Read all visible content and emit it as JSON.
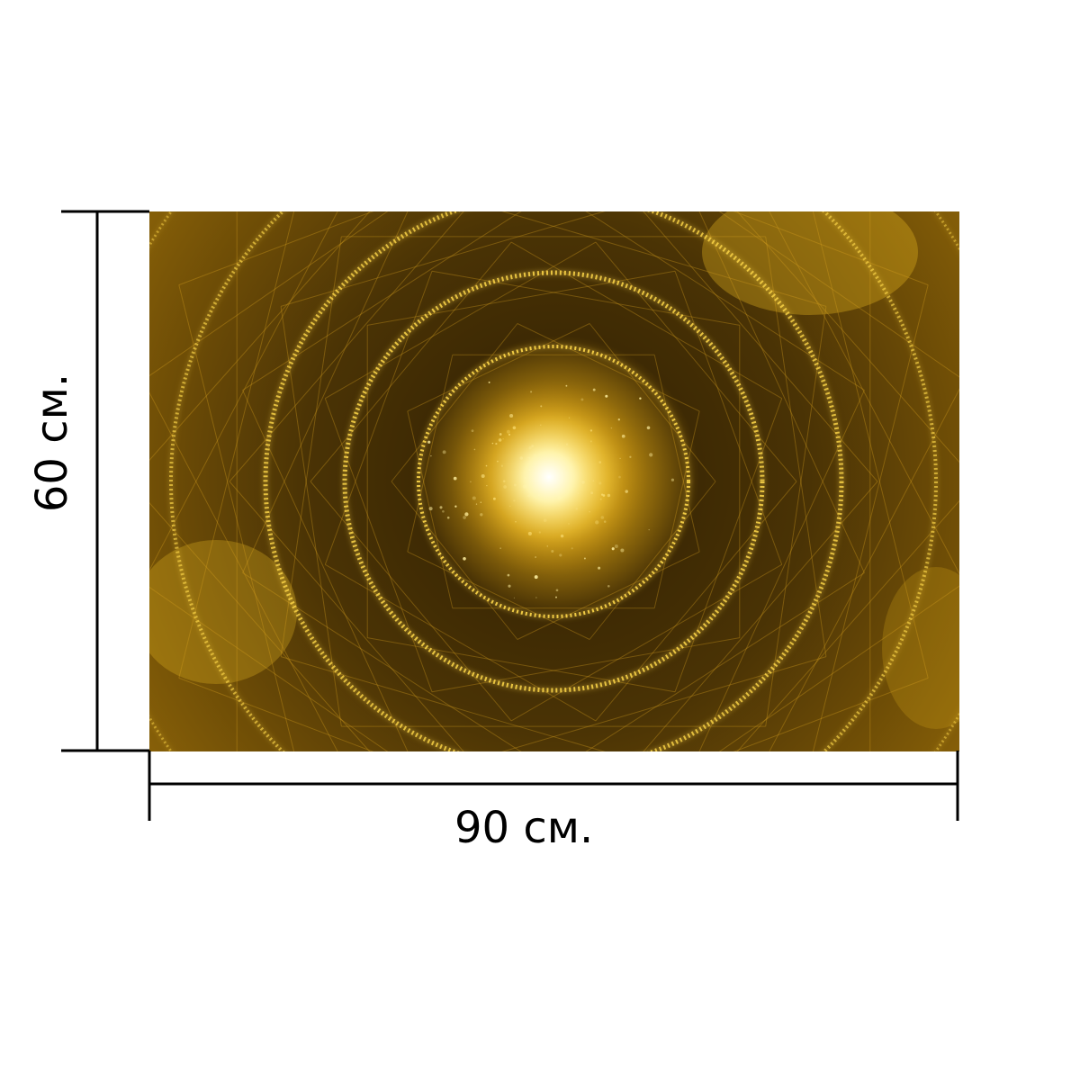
{
  "product": {
    "image_subject": "golden-light-tunnel",
    "colors": {
      "core": "#fffbe0",
      "glow": "#f7d54a",
      "ring": "#ffd84a",
      "mid": "#b98a10",
      "deep": "#3e2a04",
      "edge": "#6a4a06"
    }
  },
  "dimensions": {
    "width_label": "90 см.",
    "height_label": "60 см."
  }
}
